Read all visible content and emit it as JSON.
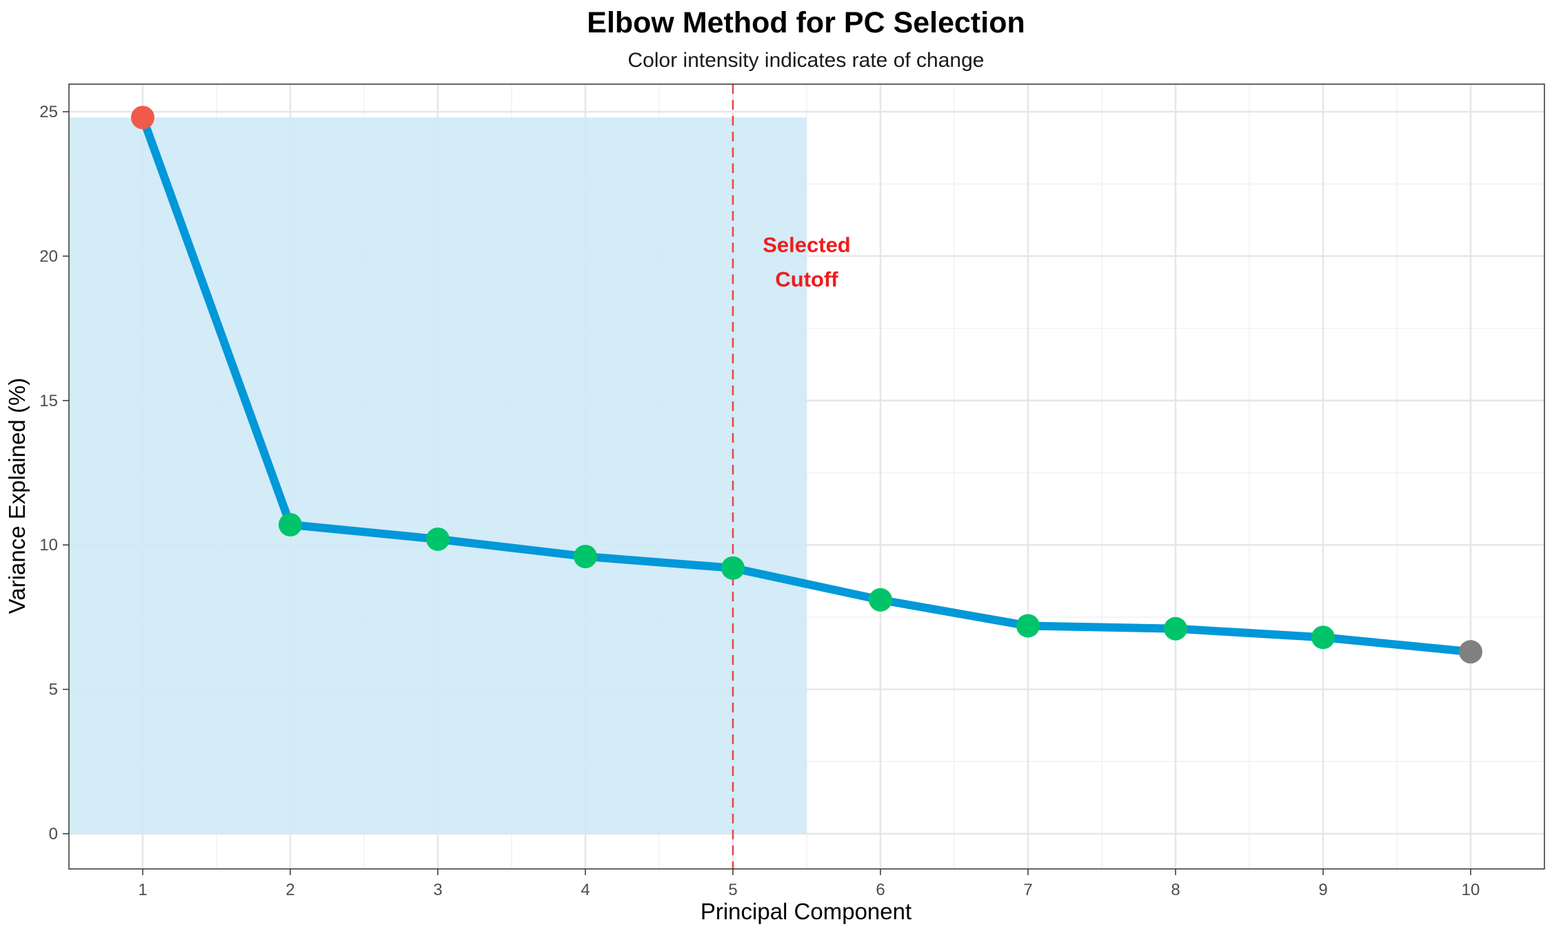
{
  "chart_data": {
    "type": "line",
    "title": "Elbow Method for PC Selection",
    "subtitle": "Color intensity indicates rate of change",
    "xlabel": "Principal Component",
    "ylabel": "Variance Explained (%)",
    "x": [
      1,
      2,
      3,
      4,
      5,
      6,
      7,
      8,
      9,
      10
    ],
    "values": [
      24.8,
      10.7,
      10.2,
      9.6,
      9.2,
      8.1,
      7.2,
      7.1,
      6.8,
      6.3
    ],
    "point_colors": [
      "#f05a4a",
      "#00c46a",
      "#00c46a",
      "#00c46a",
      "#00c46a",
      "#00c46a",
      "#00c46a",
      "#00c46a",
      "#00c46a",
      "#808080"
    ],
    "line_color": "#0098d8",
    "xlim": [
      0.5,
      10.5
    ],
    "ylim": [
      0,
      25
    ],
    "x_ticks": [
      1,
      2,
      3,
      4,
      5,
      6,
      7,
      8,
      9,
      10
    ],
    "y_ticks": [
      0,
      5,
      10,
      15,
      20,
      25
    ],
    "grid": true,
    "highlight_region": {
      "x_start": 0.5,
      "x_end": 5.5,
      "y_start": 0,
      "y_end": 24.8,
      "color": "#cfe9f7"
    },
    "cutoff": {
      "x": 5,
      "color": "#e84545",
      "style": "dashed"
    },
    "annotation": {
      "lines": [
        "Selected",
        "Cutoff"
      ],
      "x": 5.5,
      "y": 20,
      "color": "#ee1c1c"
    }
  }
}
